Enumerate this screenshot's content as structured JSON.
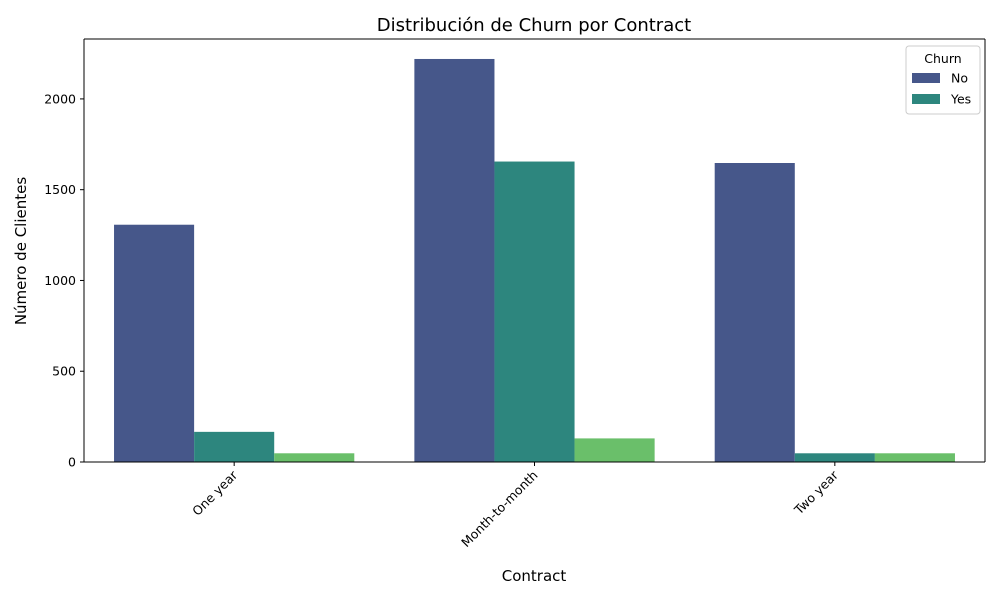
{
  "chart_data": {
    "type": "bar",
    "title": "Distribución de Churn por Contract",
    "xlabel": "Contract",
    "ylabel": "Número de Clientes",
    "categories": [
      "One year",
      "Month-to-month",
      "Two year"
    ],
    "ylim": [
      0,
      2330
    ],
    "yticks": [
      0,
      500,
      1000,
      1500,
      2000
    ],
    "series": [
      {
        "name": "No",
        "color": "#46578a",
        "values": [
          1307,
          2220,
          1647
        ]
      },
      {
        "name": "Yes",
        "color": "#2d867e",
        "values": [
          166,
          1655,
          48
        ]
      },
      {
        "name": "",
        "color": "#6abf6a",
        "values": [
          48,
          130,
          48
        ]
      }
    ],
    "legend": {
      "title": "Churn",
      "position": "top-right",
      "entries": [
        "No",
        "Yes"
      ]
    },
    "grid": false
  }
}
